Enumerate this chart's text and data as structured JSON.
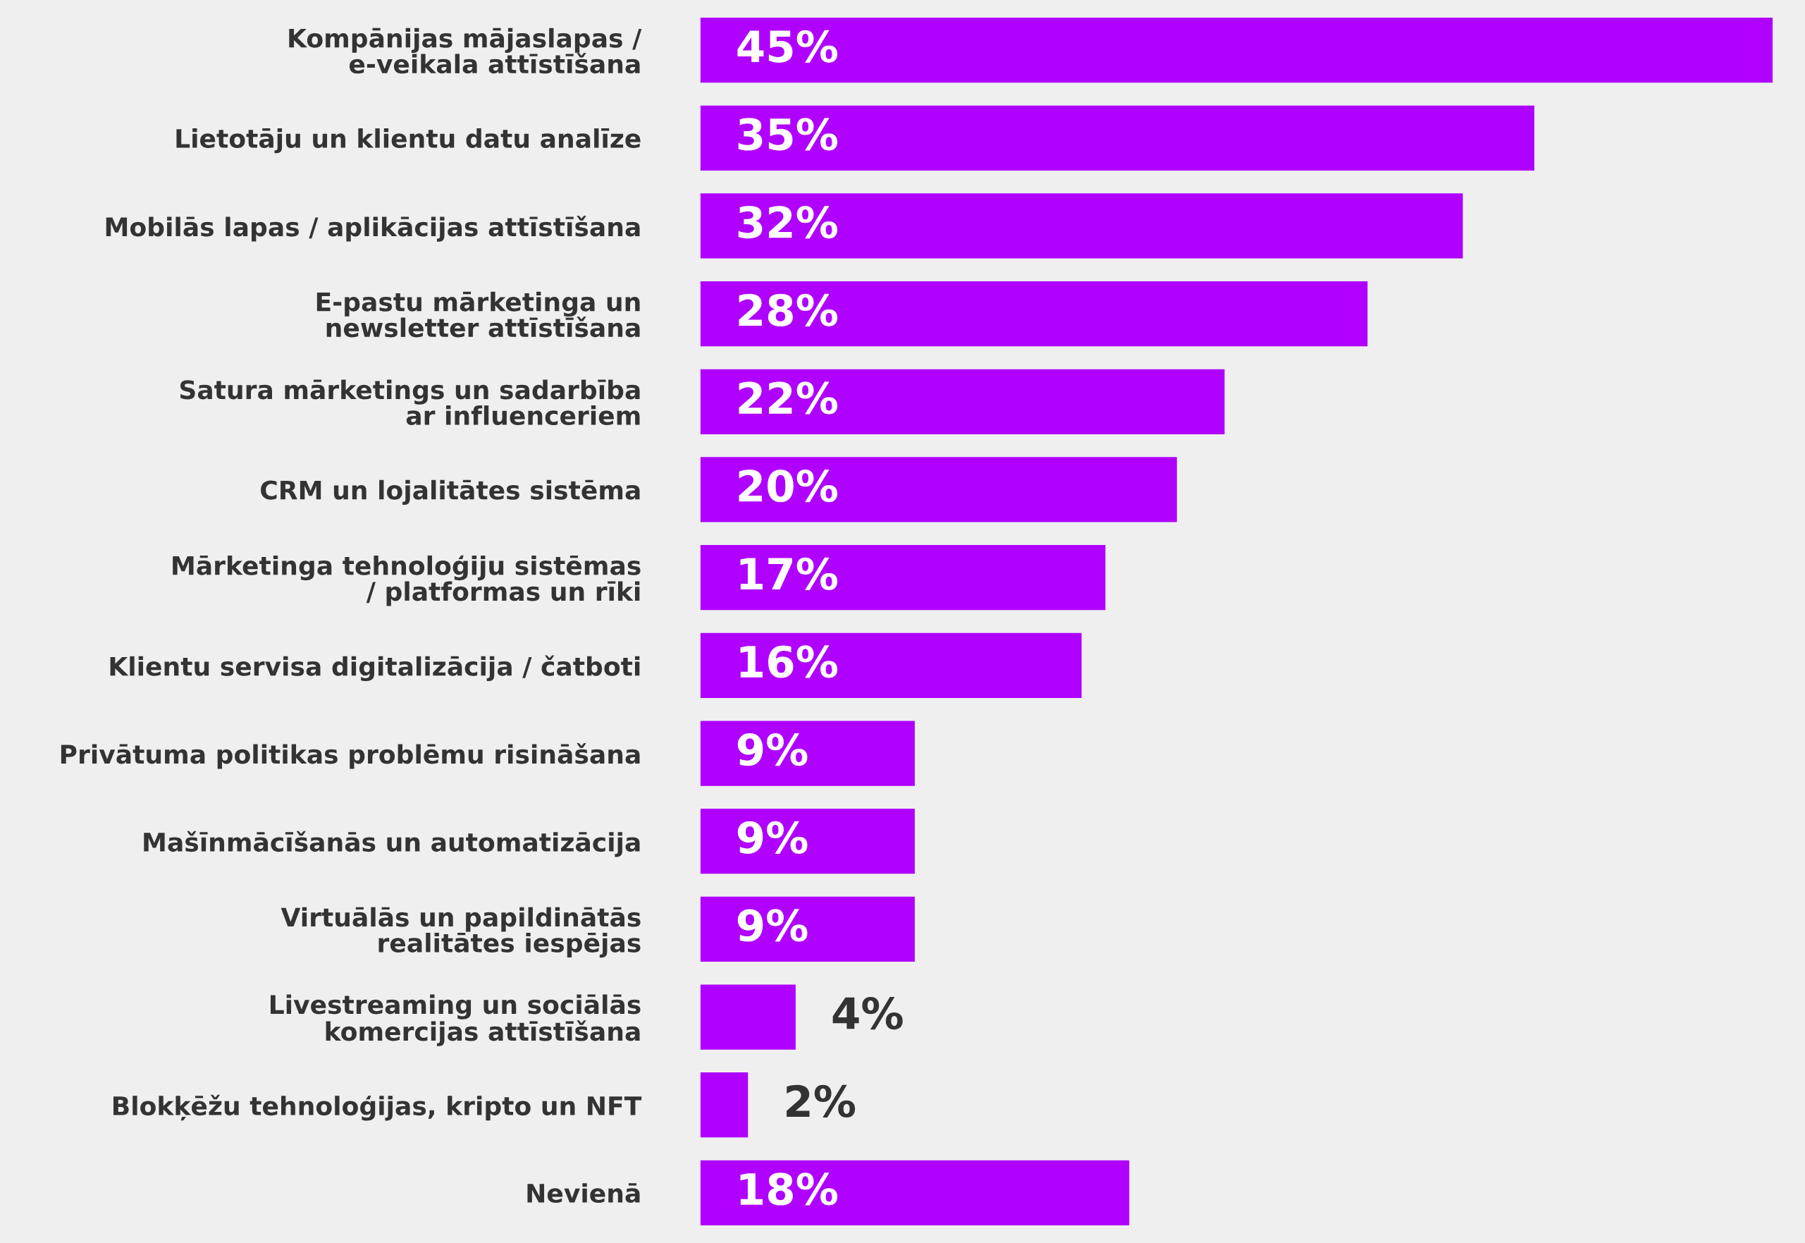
{
  "chart_data": {
    "type": "bar",
    "orientation": "horizontal",
    "categories": [
      "Kompānijas mājaslapas /\ne-veikala attīstīšana",
      "Lietotāju un klientu datu analīze",
      "Mobilās lapas / aplikācijas attīstīšana",
      "E-pastu mārketinga un\nnewsletter attīstīšana",
      "Satura mārketings un sadarbība\nar influenceriem",
      "CRM un lojalitātes sistēma",
      "Mārketinga tehnoloģiju sistēmas\n/ platformas un rīki",
      "Klientu servisa digitalizācija / čatboti",
      "Privātuma politikas problēmu risināšana",
      "Mašīnmācīšanās un automatizācija",
      "Virtuālās un papildinātās\nrealitātes iespējas",
      "Livestreaming un sociālās\nkomercijas attīstīšana",
      "Blokķēžu tehnoloģijas, kripto un NFT",
      "Nevienā"
    ],
    "values": [
      45,
      35,
      32,
      28,
      22,
      20,
      17,
      16,
      9,
      9,
      9,
      4,
      2,
      18
    ],
    "value_labels": [
      "45%",
      "35%",
      "32%",
      "28%",
      "22%",
      "20%",
      "17%",
      "16%",
      "9%",
      "9%",
      "9%",
      "4%",
      "2%",
      "18%"
    ],
    "color": "#b000ff"
  }
}
